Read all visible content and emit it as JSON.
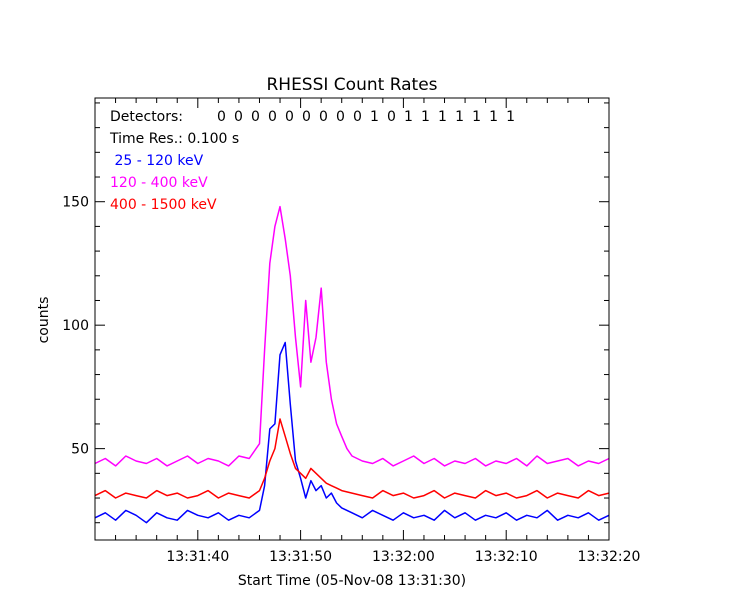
{
  "chart_data": {
    "type": "line",
    "title": "RHESSI Count Rates",
    "xlabel": "Start Time (05-Nov-08 13:31:30)",
    "ylabel": "counts",
    "x_unit": "seconds after 13:31:30",
    "xlim": [
      0,
      50
    ],
    "ylim": [
      13,
      192
    ],
    "x_ticks": [
      {
        "value": 10,
        "label": "13:31:40"
      },
      {
        "value": 20,
        "label": "13:31:50"
      },
      {
        "value": 30,
        "label": "13:32:00"
      },
      {
        "value": 40,
        "label": "13:32:10"
      },
      {
        "value": 50,
        "label": "13:32:20"
      }
    ],
    "y_ticks": [
      50,
      100,
      150
    ],
    "grid": false,
    "annotations": {
      "detectors_label": "Detectors:",
      "detectors_values": "0 0 0 0 0 0 0 0 0 1 0 1 1 1 1 1 1 1",
      "time_res_label": "Time Res.: 0.100 s"
    },
    "series": [
      {
        "name": " 25 - 120 keV",
        "color": "#0000ff",
        "x": [
          0,
          1,
          2,
          3,
          4,
          5,
          6,
          7,
          8,
          9,
          10,
          11,
          12,
          13,
          14,
          15,
          16,
          16.5,
          17,
          17.5,
          18,
          18.5,
          19,
          19.5,
          20,
          20.5,
          21,
          21.5,
          22,
          22.5,
          23,
          23.5,
          24,
          25,
          26,
          27,
          28,
          29,
          30,
          31,
          32,
          33,
          34,
          35,
          36,
          37,
          38,
          39,
          40,
          41,
          42,
          43,
          44,
          45,
          46,
          47,
          48,
          49,
          50
        ],
        "y": [
          22,
          24,
          21,
          25,
          23,
          20,
          24,
          22,
          21,
          25,
          23,
          22,
          24,
          21,
          23,
          22,
          25,
          35,
          58,
          60,
          88,
          93,
          68,
          45,
          38,
          30,
          37,
          33,
          35,
          30,
          32,
          28,
          26,
          24,
          22,
          25,
          23,
          21,
          24,
          22,
          23,
          21,
          25,
          22,
          24,
          21,
          23,
          22,
          24,
          21,
          23,
          22,
          25,
          21,
          23,
          22,
          24,
          21,
          23
        ]
      },
      {
        "name": "120 - 400 keV",
        "color": "#ff00ff",
        "x": [
          0,
          1,
          2,
          3,
          4,
          5,
          6,
          7,
          8,
          9,
          10,
          11,
          12,
          13,
          14,
          15,
          16,
          16.5,
          17,
          17.5,
          18,
          18.5,
          19,
          19.5,
          20,
          20.5,
          21,
          21.5,
          22,
          22.5,
          23,
          23.5,
          24,
          24.5,
          25,
          26,
          27,
          28,
          29,
          30,
          31,
          32,
          33,
          34,
          35,
          36,
          37,
          38,
          39,
          40,
          41,
          42,
          43,
          44,
          45,
          46,
          47,
          48,
          49,
          50
        ],
        "y": [
          44,
          46,
          43,
          47,
          45,
          44,
          46,
          43,
          45,
          47,
          44,
          46,
          45,
          43,
          47,
          46,
          52,
          90,
          125,
          140,
          148,
          135,
          120,
          95,
          75,
          110,
          85,
          95,
          115,
          85,
          70,
          60,
          55,
          50,
          47,
          45,
          44,
          46,
          43,
          45,
          47,
          44,
          46,
          43,
          45,
          44,
          46,
          43,
          45,
          44,
          46,
          43,
          47,
          44,
          45,
          46,
          43,
          45,
          44,
          46
        ]
      },
      {
        "name": "400 - 1500 keV",
        "color": "#ff0000",
        "x": [
          0,
          1,
          2,
          3,
          4,
          5,
          6,
          7,
          8,
          9,
          10,
          11,
          12,
          13,
          14,
          15,
          16,
          16.5,
          17,
          17.5,
          18,
          18.5,
          19,
          19.5,
          20,
          20.5,
          21,
          21.5,
          22,
          22.5,
          23,
          23.5,
          24,
          25,
          26,
          27,
          28,
          29,
          30,
          31,
          32,
          33,
          34,
          35,
          36,
          37,
          38,
          39,
          40,
          41,
          42,
          43,
          44,
          45,
          46,
          47,
          48,
          49,
          50
        ],
        "y": [
          31,
          33,
          30,
          32,
          31,
          30,
          33,
          31,
          32,
          30,
          31,
          33,
          30,
          32,
          31,
          30,
          33,
          38,
          45,
          50,
          62,
          55,
          48,
          42,
          40,
          38,
          42,
          40,
          38,
          36,
          35,
          34,
          33,
          32,
          31,
          30,
          33,
          31,
          32,
          30,
          31,
          33,
          30,
          32,
          31,
          30,
          33,
          31,
          32,
          30,
          31,
          33,
          30,
          32,
          31,
          30,
          33,
          31,
          32
        ]
      }
    ]
  }
}
